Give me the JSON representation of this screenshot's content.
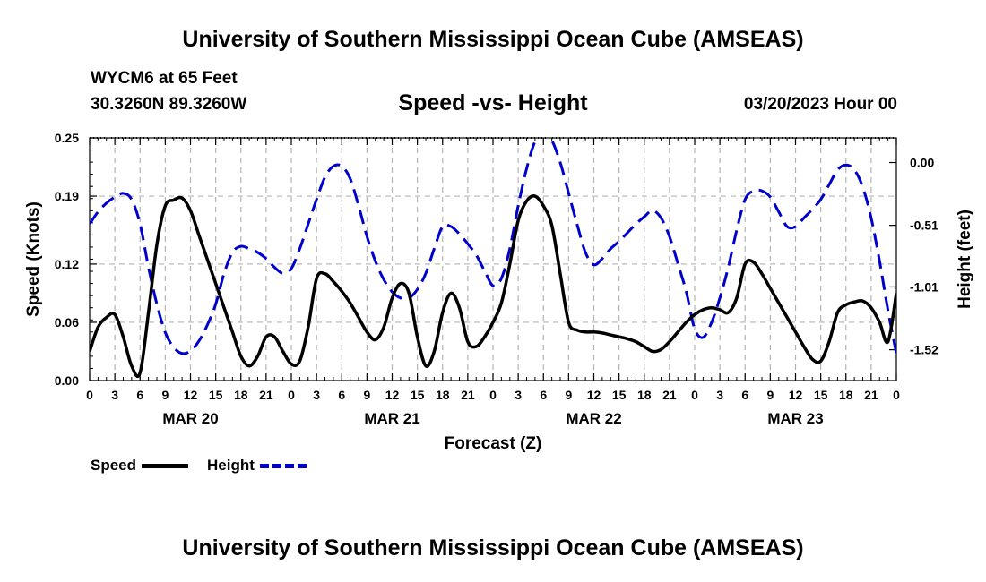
{
  "header": {
    "title": "University of Southern Mississippi Ocean Cube (AMSEAS)",
    "station": "WYCM6 at 65 Feet",
    "coords": "30.3260N  89.3260W",
    "datetime": "03/20/2023 Hour 00",
    "footer_title": "University of Southern Mississippi Ocean Cube (AMSEAS)"
  },
  "chart_data": {
    "type": "line",
    "title": "Speed -vs- Height",
    "xlabel": "Forecast (Z)",
    "ylabel": "Speed (Knots)",
    "y2label": "Height (feet)",
    "xlim": [
      0,
      96
    ],
    "ylim": [
      0,
      0.25
    ],
    "y2lim": [
      -1.77,
      0.2
    ],
    "yticks": [
      0,
      0.06,
      0.12,
      0.19,
      0.25
    ],
    "ytick_labels": [
      "0.00",
      "0.06",
      "0.12",
      "0.19",
      "0.25"
    ],
    "y2ticks": [
      -1.52,
      -1.01,
      -0.51,
      0.0
    ],
    "y2tick_labels": [
      "-1.52",
      "-1.01",
      "-0.51",
      "0.00"
    ],
    "xticks": [
      0,
      3,
      6,
      9,
      12,
      15,
      18,
      21,
      24,
      27,
      30,
      33,
      36,
      39,
      42,
      45,
      48,
      51,
      54,
      57,
      60,
      63,
      66,
      69,
      72,
      75,
      78,
      81,
      84,
      87,
      90,
      93,
      96
    ],
    "xtick_labels": [
      "0",
      "3",
      "6",
      "9",
      "12",
      "15",
      "18",
      "21",
      "0",
      "3",
      "6",
      "9",
      "12",
      "15",
      "18",
      "21",
      "0",
      "3",
      "6",
      "9",
      "12",
      "15",
      "18",
      "21",
      "0",
      "3",
      "6",
      "9",
      "12",
      "15",
      "18",
      "21",
      "0"
    ],
    "day_labels": [
      {
        "x": 12,
        "label": "MAR 20"
      },
      {
        "x": 36,
        "label": "MAR 21"
      },
      {
        "x": 60,
        "label": "MAR 22"
      },
      {
        "x": 84,
        "label": "MAR 23"
      }
    ],
    "grid": true,
    "legend": "bottom-left",
    "series": [
      {
        "name": "Speed",
        "axis": "left",
        "color": "#000000",
        "dash": "solid",
        "x": [
          0,
          1,
          2,
          3,
          4,
          5,
          6,
          7,
          8,
          9,
          10,
          11,
          12,
          13,
          14,
          15,
          16,
          17,
          18,
          19,
          20,
          21,
          22,
          23,
          24,
          25,
          26,
          27,
          28,
          29,
          30,
          31,
          32,
          33,
          34,
          35,
          36,
          37,
          38,
          39,
          40,
          41,
          42,
          43,
          44,
          45,
          46,
          47,
          48,
          49,
          50,
          51,
          52,
          53,
          54,
          55,
          56,
          57,
          58,
          59,
          60,
          61,
          62,
          63,
          64,
          65,
          66,
          67,
          68,
          69,
          70,
          71,
          72,
          73,
          74,
          75,
          76,
          77,
          78,
          79,
          80,
          81,
          82,
          83,
          84,
          85,
          86,
          87,
          88,
          89,
          90,
          91,
          92,
          93,
          94,
          95,
          96
        ],
        "values": [
          0.03,
          0.055,
          0.065,
          0.068,
          0.045,
          0.015,
          0.008,
          0.07,
          0.14,
          0.18,
          0.186,
          0.188,
          0.175,
          0.15,
          0.125,
          0.1,
          0.075,
          0.05,
          0.025,
          0.015,
          0.025,
          0.045,
          0.045,
          0.03,
          0.017,
          0.02,
          0.055,
          0.105,
          0.11,
          0.102,
          0.092,
          0.08,
          0.065,
          0.05,
          0.042,
          0.055,
          0.085,
          0.1,
          0.09,
          0.045,
          0.015,
          0.03,
          0.07,
          0.09,
          0.075,
          0.04,
          0.035,
          0.045,
          0.06,
          0.08,
          0.12,
          0.165,
          0.185,
          0.19,
          0.18,
          0.16,
          0.11,
          0.06,
          0.052,
          0.05,
          0.05,
          0.049,
          0.047,
          0.045,
          0.043,
          0.04,
          0.035,
          0.03,
          0.032,
          0.04,
          0.05,
          0.06,
          0.068,
          0.073,
          0.075,
          0.073,
          0.07,
          0.085,
          0.12,
          0.122,
          0.11,
          0.095,
          0.08,
          0.065,
          0.05,
          0.035,
          0.022,
          0.02,
          0.04,
          0.07,
          0.078,
          0.081,
          0.082,
          0.075,
          0.06,
          0.04,
          0.09
        ]
      },
      {
        "name": "Height",
        "axis": "right",
        "color": "#0000cc",
        "dash": "dashed",
        "x": [
          0,
          1,
          2,
          3,
          4,
          5,
          6,
          7,
          8,
          9,
          10,
          11,
          12,
          13,
          14,
          15,
          16,
          17,
          18,
          19,
          20,
          21,
          22,
          23,
          24,
          25,
          26,
          27,
          28,
          29,
          30,
          31,
          32,
          33,
          34,
          35,
          36,
          37,
          38,
          39,
          40,
          41,
          42,
          43,
          44,
          45,
          46,
          47,
          48,
          49,
          50,
          51,
          52,
          53,
          54,
          55,
          56,
          57,
          58,
          59,
          60,
          61,
          62,
          63,
          64,
          65,
          66,
          67,
          68,
          69,
          70,
          71,
          72,
          73,
          74,
          75,
          76,
          77,
          78,
          79,
          80,
          81,
          82,
          83,
          84,
          85,
          86,
          87,
          88,
          89,
          90,
          91,
          92,
          93,
          94,
          95,
          96
        ],
        "values": [
          -0.5,
          -0.4,
          -0.33,
          -0.28,
          -0.25,
          -0.3,
          -0.5,
          -0.85,
          -1.15,
          -1.38,
          -1.5,
          -1.55,
          -1.53,
          -1.45,
          -1.32,
          -1.15,
          -0.9,
          -0.73,
          -0.68,
          -0.7,
          -0.73,
          -0.78,
          -0.85,
          -0.9,
          -0.86,
          -0.7,
          -0.5,
          -0.3,
          -0.12,
          -0.03,
          -0.03,
          -0.13,
          -0.35,
          -0.6,
          -0.8,
          -0.95,
          -1.05,
          -1.1,
          -1.1,
          -1.03,
          -0.9,
          -0.7,
          -0.52,
          -0.52,
          -0.58,
          -0.66,
          -0.75,
          -0.88,
          -1.0,
          -0.94,
          -0.7,
          -0.35,
          -0.05,
          0.17,
          0.25,
          0.18,
          0.0,
          -0.25,
          -0.5,
          -0.73,
          -0.83,
          -0.78,
          -0.7,
          -0.64,
          -0.57,
          -0.5,
          -0.44,
          -0.39,
          -0.45,
          -0.6,
          -0.82,
          -1.05,
          -1.35,
          -1.42,
          -1.3,
          -1.1,
          -0.85,
          -0.55,
          -0.3,
          -0.23,
          -0.23,
          -0.28,
          -0.4,
          -0.52,
          -0.52,
          -0.45,
          -0.38,
          -0.3,
          -0.18,
          -0.06,
          -0.02,
          -0.06,
          -0.2,
          -0.45,
          -0.8,
          -1.2,
          -1.55
        ]
      }
    ]
  }
}
